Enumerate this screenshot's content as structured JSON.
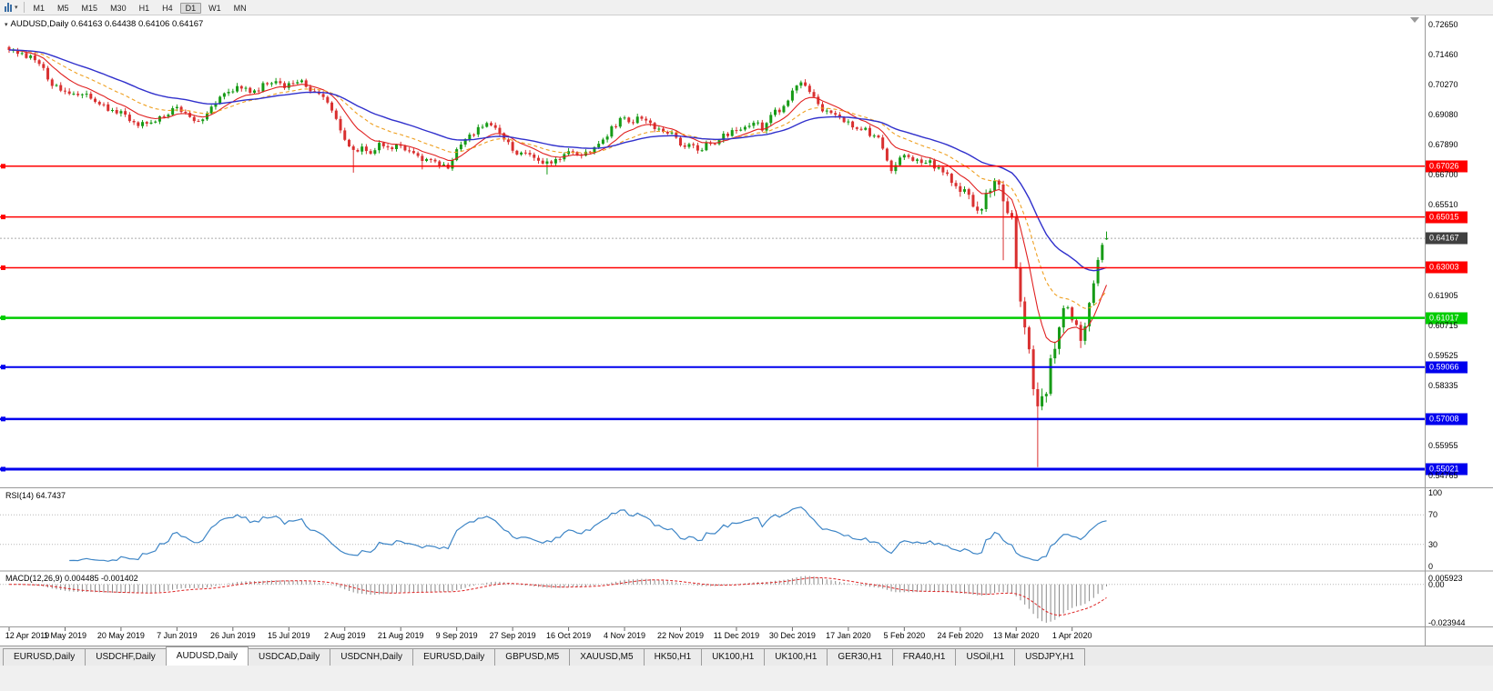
{
  "toolbar": {
    "timeframes": [
      "M1",
      "M5",
      "M15",
      "M30",
      "H1",
      "H4",
      "D1",
      "W1",
      "MN"
    ],
    "active": "D1"
  },
  "tabs": {
    "items": [
      "EURUSD,Daily",
      "USDCHF,Daily",
      "AUDUSD,Daily",
      "USDCAD,Daily",
      "USDCNH,Daily",
      "EURUSD,Daily",
      "GBPUSD,M5",
      "XAUUSD,M5",
      "HK50,H1",
      "UK100,H1",
      "UK100,H1",
      "GER30,H1",
      "FRA40,H1",
      "USOil,H1",
      "USDJPY,H1"
    ],
    "active_index": 2
  },
  "chart_data": {
    "type": "candlestick",
    "title": "AUDUSD,Daily",
    "symbol": "AUDUSD",
    "period": "Daily",
    "symbol_line": "AUDUSD,Daily 0.64163 0.64438 0.64106 0.64167",
    "last_bar": {
      "open": 0.64163,
      "high": 0.64438,
      "low": 0.64106,
      "close": 0.64167
    },
    "num_bars": 256,
    "bars_per_x_label": 13,
    "x_labels": [
      "12 Apr 2019",
      "1 May 2019",
      "20 May 2019",
      "7 Jun 2019",
      "26 Jun 2019",
      "15 Jul 2019",
      "2 Aug 2019",
      "21 Aug 2019",
      "9 Sep 2019",
      "27 Sep 2019",
      "16 Oct 2019",
      "4 Nov 2019",
      "22 Nov 2019",
      "11 Dec 2019",
      "30 Dec 2019",
      "17 Jan 2020",
      "5 Feb 2020",
      "24 Feb 2020",
      "13 Mar 2020",
      "1 Apr 2020"
    ],
    "price_axis_ticks": [
      "0.72650",
      "0.71460",
      "0.70270",
      "0.69080",
      "0.67890",
      "0.66700",
      "0.65510",
      "0.61905",
      "0.60715",
      "0.59525",
      "0.58335",
      "0.55955",
      "0.54765"
    ],
    "ylim": {
      "top": 0.73,
      "bottom": 0.543
    },
    "close_waypoints": [
      [
        0,
        0.7172
      ],
      [
        3,
        0.715
      ],
      [
        6,
        0.7125
      ],
      [
        8,
        0.709
      ],
      [
        10,
        0.7015
      ],
      [
        13,
        0.701
      ],
      [
        15,
        0.699
      ],
      [
        18,
        0.6985
      ],
      [
        21,
        0.6945
      ],
      [
        24,
        0.6925
      ],
      [
        26,
        0.691
      ],
      [
        29,
        0.6875
      ],
      [
        32,
        0.6865
      ],
      [
        35,
        0.69
      ],
      [
        39,
        0.693
      ],
      [
        42,
        0.689
      ],
      [
        44,
        0.6875
      ],
      [
        46,
        0.692
      ],
      [
        48,
        0.696
      ],
      [
        50,
        0.699
      ],
      [
        52,
        0.7
      ],
      [
        54,
        0.702
      ],
      [
        56,
        0.6985
      ],
      [
        58,
        0.701
      ],
      [
        60,
        0.7035
      ],
      [
        62,
        0.7045
      ],
      [
        64,
        0.701
      ],
      [
        65,
        0.7025
      ],
      [
        67,
        0.704
      ],
      [
        68,
        0.7045
      ],
      [
        70,
        0.7005
      ],
      [
        72,
        0.6985
      ],
      [
        74,
        0.6955
      ],
      [
        76,
        0.69
      ],
      [
        77,
        0.685
      ],
      [
        78,
        0.68
      ],
      [
        80,
        0.6755
      ],
      [
        82,
        0.6785
      ],
      [
        84,
        0.6755
      ],
      [
        86,
        0.679
      ],
      [
        88,
        0.678
      ],
      [
        91,
        0.678
      ],
      [
        93,
        0.676
      ],
      [
        95,
        0.6735
      ],
      [
        98,
        0.673
      ],
      [
        100,
        0.6715
      ],
      [
        102,
        0.6705
      ],
      [
        104,
        0.677
      ],
      [
        107,
        0.682
      ],
      [
        110,
        0.686
      ],
      [
        112,
        0.6875
      ],
      [
        114,
        0.684
      ],
      [
        117,
        0.676
      ],
      [
        119,
        0.675
      ],
      [
        121,
        0.6745
      ],
      [
        124,
        0.6705
      ],
      [
        127,
        0.672
      ],
      [
        130,
        0.676
      ],
      [
        133,
        0.6745
      ],
      [
        136,
        0.677
      ],
      [
        139,
        0.683
      ],
      [
        142,
        0.689
      ],
      [
        145,
        0.688
      ],
      [
        147,
        0.6895
      ],
      [
        149,
        0.6865
      ],
      [
        152,
        0.685
      ],
      [
        154,
        0.6825
      ],
      [
        156,
        0.6785
      ],
      [
        158,
        0.6795
      ],
      [
        160,
        0.677
      ],
      [
        162,
        0.6785
      ],
      [
        164,
        0.68
      ],
      [
        166,
        0.6825
      ],
      [
        169,
        0.685
      ],
      [
        171,
        0.6865
      ],
      [
        173,
        0.688
      ],
      [
        175,
        0.6855
      ],
      [
        177,
        0.6905
      ],
      [
        180,
        0.694
      ],
      [
        182,
        0.7
      ],
      [
        184,
        0.703
      ],
      [
        186,
        0.7
      ],
      [
        189,
        0.693
      ],
      [
        192,
        0.69
      ],
      [
        195,
        0.6875
      ],
      [
        197,
        0.686
      ],
      [
        199,
        0.6845
      ],
      [
        202,
        0.681
      ],
      [
        205,
        0.669
      ],
      [
        208,
        0.6745
      ],
      [
        211,
        0.672
      ],
      [
        214,
        0.6715
      ],
      [
        217,
        0.6685
      ],
      [
        220,
        0.662
      ],
      [
        222,
        0.66
      ],
      [
        224,
        0.6545
      ],
      [
        225,
        0.6515
      ],
      [
        226,
        0.654
      ],
      [
        227,
        0.6585
      ],
      [
        228,
        0.6625
      ],
      [
        230,
        0.664
      ],
      [
        231,
        0.658
      ],
      [
        232,
        0.65
      ],
      [
        233,
        0.649
      ],
      [
        234,
        0.6285
      ],
      [
        235,
        0.6185
      ],
      [
        236,
        0.6095
      ],
      [
        237,
        0.599
      ],
      [
        238,
        0.58
      ],
      [
        239,
        0.5745
      ],
      [
        240,
        0.5795
      ],
      [
        241,
        0.583
      ],
      [
        242,
        0.5965
      ],
      [
        243,
        0.5955
      ],
      [
        244,
        0.6075
      ],
      [
        245,
        0.6165
      ],
      [
        246,
        0.6135
      ],
      [
        247,
        0.6095
      ],
      [
        248,
        0.606
      ],
      [
        249,
        0.5995
      ],
      [
        250,
        0.6085
      ],
      [
        251,
        0.6165
      ],
      [
        252,
        0.623
      ],
      [
        253,
        0.6345
      ],
      [
        254,
        0.6395
      ],
      [
        255,
        0.64167
      ]
    ],
    "wick_low_overrides": {
      "80": 0.6677,
      "96": 0.669,
      "125": 0.667,
      "231": 0.633,
      "239": 0.551,
      "249": 0.5982
    },
    "colors": {
      "up": "#169b16",
      "down": "#d93030",
      "ma_fast": "#e02020",
      "ma_mid": "#efa020",
      "ma_slow": "#3030cc",
      "rsi": "#3d85c6",
      "macd_hist": "#8a8a8a",
      "macd_signal": "#dd2222",
      "current_price_badge": "#404040",
      "axis_text": "#000000"
    },
    "moving_averages": [
      {
        "name": "ma-fast",
        "period": 10,
        "style": "solid"
      },
      {
        "name": "ma-mid",
        "period": 21,
        "style": "dashed"
      },
      {
        "name": "ma-slow",
        "period": 40,
        "style": "solid"
      }
    ],
    "horizontal_lines": [
      {
        "price": 0.67026,
        "label": "0.67026",
        "color": "#ff0000",
        "width": 1.5
      },
      {
        "price": 0.65015,
        "label": "0.65015",
        "color": "#ff0000",
        "width": 1.5
      },
      {
        "price": 0.63003,
        "label": "0.63003",
        "color": "#ff0000",
        "width": 1.5
      },
      {
        "price": 0.61017,
        "label": "0.61017",
        "color": "#00cc00",
        "width": 2.5
      },
      {
        "price": 0.59066,
        "label": "0.59066",
        "color": "#0000ee",
        "width": 2
      },
      {
        "price": 0.57008,
        "label": "0.57008",
        "color": "#0000ee",
        "width": 2.5
      },
      {
        "price": 0.55021,
        "label": "0.55021",
        "color": "#0000ee",
        "width": 3
      }
    ],
    "current_price": {
      "value": 0.64167,
      "label": "0.64167"
    },
    "indicators": [
      {
        "name": "RSI",
        "label": "RSI(14) 64.7437",
        "period": 14,
        "levels": [
          "100",
          "70",
          "30",
          "0"
        ],
        "current": 64.7437
      },
      {
        "name": "MACD",
        "label": "MACD(12,26,9) 0.004485 -0.001402",
        "fast": 12,
        "slow": 26,
        "signal": 9,
        "scale_max": 0.005923,
        "scale_min": -0.023944,
        "axis_labels": [
          "0.005923",
          "0.00",
          "-0.023944"
        ],
        "current_macd": 0.004485,
        "current_signal": -0.001402
      }
    ]
  }
}
